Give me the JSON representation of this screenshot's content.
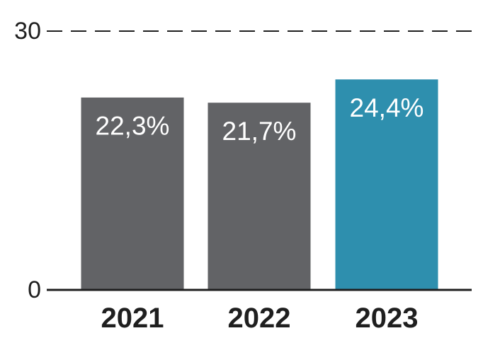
{
  "chart_data": {
    "type": "bar",
    "categories": [
      "2021",
      "2022",
      "2023"
    ],
    "values": [
      22.3,
      21.7,
      24.4
    ],
    "data_labels": [
      "22,3%",
      "21,7%",
      "24,4%"
    ],
    "bar_colors": [
      "#626366",
      "#626366",
      "#2e8fae"
    ],
    "ylim": [
      0,
      30
    ],
    "y_ticks": [
      {
        "value": 0,
        "label": "0"
      },
      {
        "value": 30,
        "label": "30"
      }
    ],
    "title": "",
    "xlabel": "",
    "ylabel": "",
    "grid": "dashed line at 30",
    "legend": "none"
  }
}
